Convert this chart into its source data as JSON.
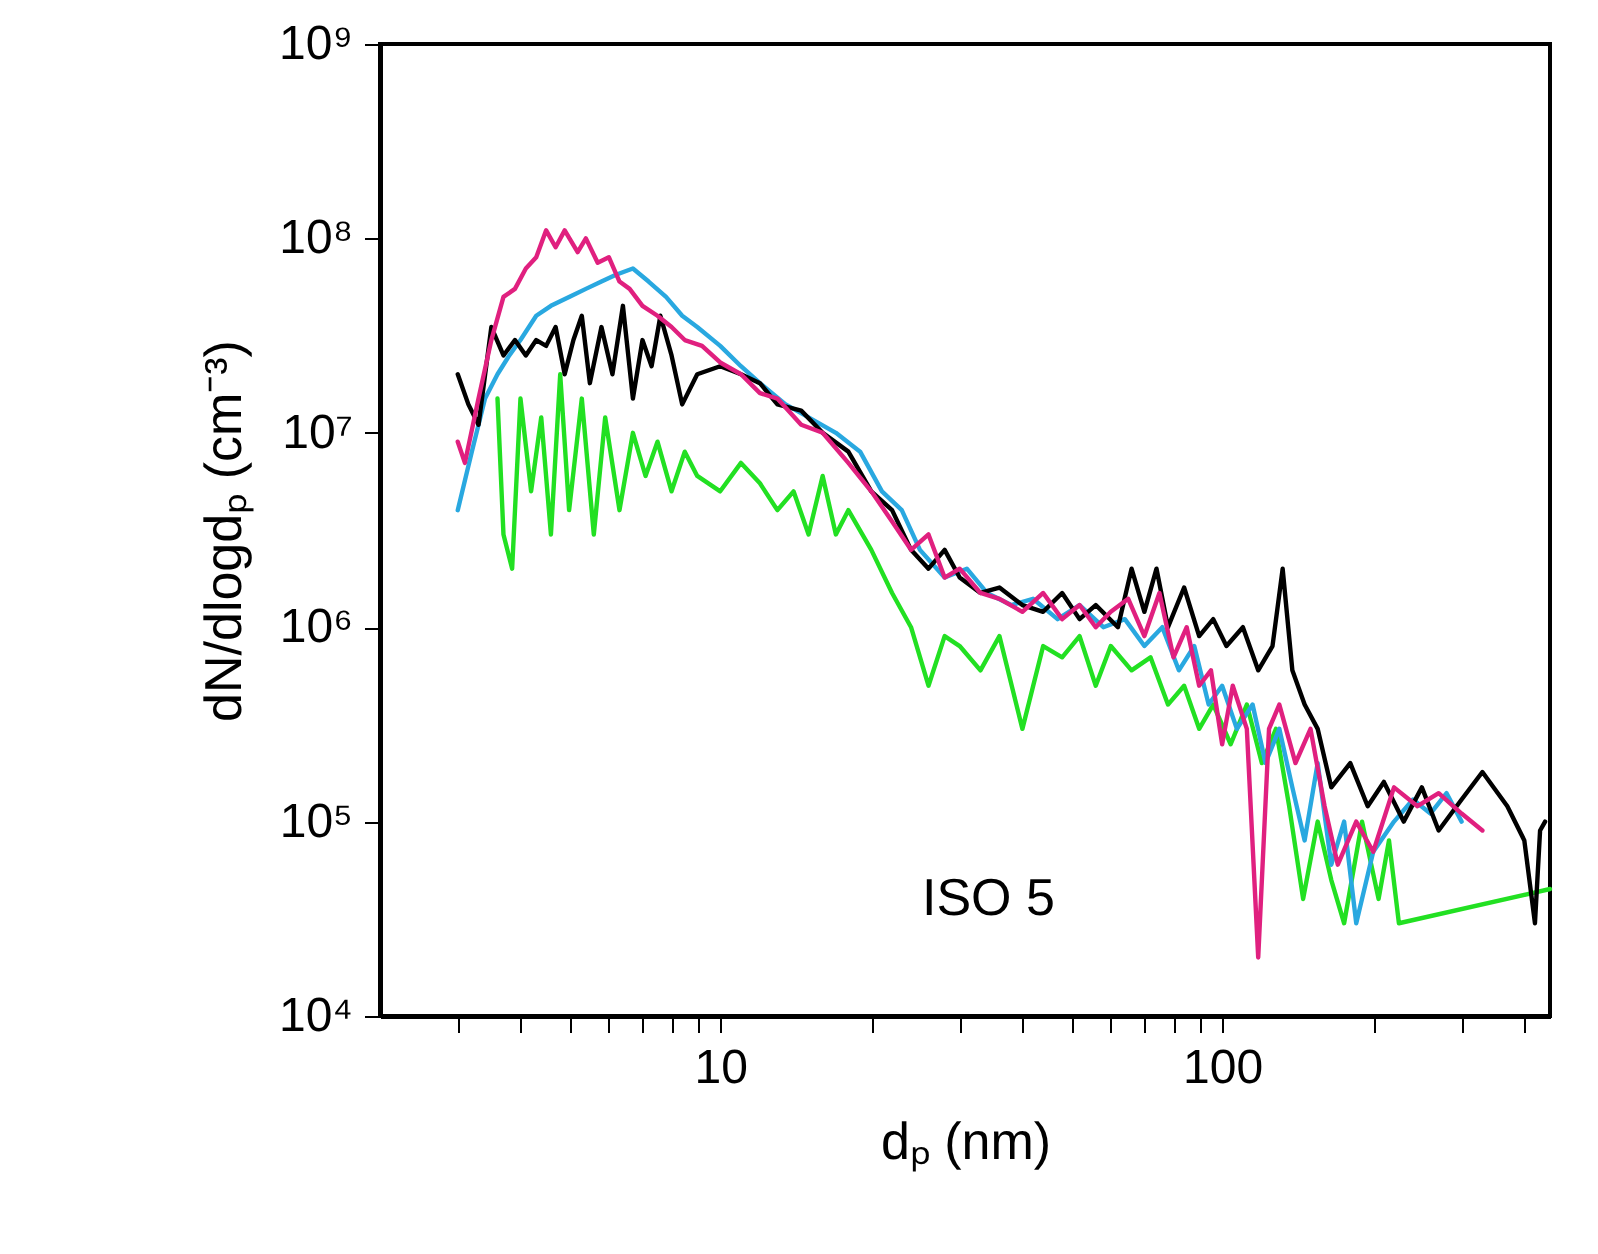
{
  "chart_data": {
    "type": "line",
    "log": "xy",
    "xlabel": "dₚ (nm)",
    "ylabel": "dN/dlogdₚ (cm⁻³)",
    "xlim": [
      2.1,
      450
    ],
    "ylim": [
      10000,
      1000000000
    ],
    "xticks": [
      {
        "value": 3,
        "label": null
      },
      {
        "value": 4,
        "label": null
      },
      {
        "value": 5,
        "label": null
      },
      {
        "value": 6,
        "label": null
      },
      {
        "value": 7,
        "label": null
      },
      {
        "value": 8,
        "label": null
      },
      {
        "value": 9,
        "label": null
      },
      10,
      {
        "value": 20,
        "label": null
      },
      {
        "value": 30,
        "label": null
      },
      {
        "value": 40,
        "label": null
      },
      {
        "value": 50,
        "label": null
      },
      {
        "value": 60,
        "label": null
      },
      {
        "value": 70,
        "label": null
      },
      {
        "value": 80,
        "label": null
      },
      {
        "value": 90,
        "label": null
      },
      100,
      {
        "value": 200,
        "label": null
      },
      {
        "value": 300,
        "label": null
      },
      {
        "value": 400,
        "label": null
      }
    ],
    "yticks": [
      {
        "value": 10000,
        "label": "10⁴"
      },
      {
        "value": 100000,
        "label": "10⁵"
      },
      {
        "value": 1000000,
        "label": "10⁶"
      },
      {
        "value": 10000000,
        "label": "10⁷"
      },
      {
        "value": 100000000,
        "label": "10⁸"
      },
      {
        "value": 1000000000,
        "label": "10⁹"
      }
    ],
    "annotations": [
      "ISO 5"
    ],
    "series": [
      {
        "color": "#22e022",
        "x": [
          3.6,
          3.7,
          3.85,
          4.0,
          4.2,
          4.4,
          4.6,
          4.8,
          5.0,
          5.3,
          5.6,
          5.9,
          6.3,
          6.7,
          7.1,
          7.5,
          8.0,
          8.5,
          9,
          10,
          11,
          12,
          13,
          14,
          15,
          16,
          17,
          18,
          20,
          22,
          24,
          26,
          28,
          30,
          33,
          36,
          40,
          44,
          48,
          52,
          56,
          60,
          66,
          72,
          78,
          84,
          90,
          96,
          104,
          112,
          120,
          128,
          136,
          145,
          155,
          165,
          175,
          190,
          205,
          215,
          225,
          450
        ],
        "values": [
          15000000.0,
          3000000.0,
          2000000.0,
          15000000.0,
          5000000.0,
          12000000.0,
          3000000.0,
          20000000.0,
          4000000.0,
          15000000.0,
          3000000.0,
          12000000.0,
          4000000.0,
          10000000.0,
          6000000.0,
          9000000.0,
          5000000.0,
          8000000.0,
          6000000.0,
          5000000.0,
          7000000.0,
          5500000.0,
          4000000.0,
          5000000.0,
          3000000.0,
          6000000.0,
          3000000.0,
          4000000.0,
          2500000.0,
          1500000.0,
          1000000.0,
          500000.0,
          900000.0,
          800000.0,
          600000.0,
          900000.0,
          300000.0,
          800000.0,
          700000.0,
          900000.0,
          500000.0,
          800000.0,
          600000.0,
          700000.0,
          400000.0,
          500000.0,
          300000.0,
          400000.0,
          250000.0,
          400000.0,
          200000.0,
          300000.0,
          120000.0,
          40000.0,
          100000.0,
          50000.0,
          30000.0,
          100000.0,
          40000.0,
          80000.0,
          30000.0,
          45000.0
        ]
      },
      {
        "color": "#29a8e0",
        "x": [
          3.0,
          3.2,
          3.4,
          3.6,
          3.8,
          4.0,
          4.3,
          4.6,
          5.0,
          5.4,
          5.8,
          6.2,
          6.7,
          7.2,
          7.8,
          8.4,
          9,
          10,
          11,
          12,
          13.5,
          15,
          17,
          19,
          21,
          23,
          25,
          28,
          31,
          34,
          38,
          42,
          47,
          52,
          58,
          64,
          70,
          76,
          82,
          88,
          94,
          100,
          107,
          115,
          122,
          130,
          138,
          146,
          155,
          165,
          175,
          185,
          200,
          220,
          240,
          260,
          280,
          300
        ],
        "values": [
          4000000.0,
          8000000.0,
          15000000.0,
          20000000.0,
          25000000.0,
          30000000.0,
          40000000.0,
          45000000.0,
          50000000.0,
          55000000.0,
          60000000.0,
          65000000.0,
          70000000.0,
          60000000.0,
          50000000.0,
          40000000.0,
          35000000.0,
          28000000.0,
          22000000.0,
          18000000.0,
          14000000.0,
          12000000.0,
          10000000.0,
          8000000.0,
          5000000.0,
          4000000.0,
          2500000.0,
          1800000.0,
          2000000.0,
          1500000.0,
          1300000.0,
          1400000.0,
          1100000.0,
          1300000.0,
          1000000.0,
          1100000.0,
          800000.0,
          1000000.0,
          600000.0,
          800000.0,
          400000.0,
          500000.0,
          300000.0,
          400000.0,
          200000.0,
          300000.0,
          150000.0,
          80000.0,
          200000.0,
          60000.0,
          100000.0,
          30000.0,
          70000.0,
          100000.0,
          130000.0,
          110000.0,
          140000.0,
          100000.0
        ]
      },
      {
        "color": "#000000",
        "x": [
          3.0,
          3.15,
          3.3,
          3.5,
          3.7,
          3.9,
          4.1,
          4.3,
          4.5,
          4.7,
          4.9,
          5.1,
          5.3,
          5.5,
          5.8,
          6.1,
          6.4,
          6.7,
          7.0,
          7.3,
          7.6,
          8.0,
          8.4,
          9,
          10,
          11,
          12,
          13,
          14.5,
          16,
          18,
          20,
          22,
          24,
          26,
          28,
          30,
          33,
          36,
          40,
          44,
          48,
          52,
          56,
          62,
          66,
          70,
          74,
          78,
          84,
          90,
          96,
          102,
          110,
          118,
          126,
          132,
          138,
          146,
          155,
          165,
          180,
          195,
          210,
          230,
          250,
          270,
          300,
          330,
          370,
          400,
          420,
          430,
          440
        ],
        "values": [
          20000000.0,
          14000000.0,
          11000000.0,
          35000000.0,
          25000000.0,
          30000000.0,
          25000000.0,
          30000000.0,
          28000000.0,
          35000000.0,
          20000000.0,
          30000000.0,
          40000000.0,
          18000000.0,
          35000000.0,
          20000000.0,
          45000000.0,
          15000000.0,
          30000000.0,
          22000000.0,
          40000000.0,
          25000000.0,
          14000000.0,
          20000000.0,
          22000000.0,
          20000000.0,
          18000000.0,
          14000000.0,
          13000000.0,
          10000000.0,
          8000000.0,
          5000000.0,
          4000000.0,
          2500000.0,
          2000000.0,
          2500000.0,
          1800000.0,
          1500000.0,
          1600000.0,
          1300000.0,
          1200000.0,
          1500000.0,
          1100000.0,
          1300000.0,
          1000000.0,
          2000000.0,
          1200000.0,
          2000000.0,
          1000000.0,
          1600000.0,
          900000.0,
          1100000.0,
          800000.0,
          1000000.0,
          600000.0,
          800000.0,
          2000000.0,
          600000.0,
          400000.0,
          300000.0,
          150000.0,
          200000.0,
          120000.0,
          160000.0,
          100000.0,
          150000.0,
          90000.0,
          130000.0,
          180000.0,
          120000.0,
          80000.0,
          30000.0,
          90000.0,
          100000.0
        ]
      },
      {
        "color": "#e0207f",
        "x": [
          3.0,
          3.1,
          3.3,
          3.5,
          3.7,
          3.9,
          4.1,
          4.3,
          4.5,
          4.7,
          4.9,
          5.2,
          5.4,
          5.7,
          6.0,
          6.3,
          6.6,
          7.0,
          7.5,
          8.0,
          8.5,
          9.2,
          10,
          11,
          12,
          13,
          14.5,
          16,
          18,
          20,
          22,
          24,
          26,
          28,
          30,
          33,
          36,
          40,
          44,
          48,
          52,
          56,
          60,
          65,
          70,
          75,
          80,
          85,
          90,
          95,
          100,
          105,
          112,
          118,
          124,
          130,
          140,
          150,
          160,
          170,
          185,
          200,
          220,
          245,
          270,
          300,
          330
        ],
        "values": [
          9000000.0,
          7000000.0,
          15000000.0,
          30000000.0,
          50000000.0,
          55000000.0,
          70000000.0,
          80000000.0,
          110000000.0,
          90000000.0,
          110000000.0,
          85000000.0,
          100000000.0,
          75000000.0,
          80000000.0,
          60000000.0,
          55000000.0,
          45000000.0,
          40000000.0,
          35000000.0,
          30000000.0,
          28000000.0,
          23000000.0,
          20000000.0,
          16000000.0,
          15000000.0,
          11000000.0,
          10000000.0,
          7000000.0,
          5000000.0,
          3500000.0,
          2500000.0,
          3000000.0,
          1800000.0,
          2000000.0,
          1500000.0,
          1400000.0,
          1200000.0,
          1500000.0,
          1100000.0,
          1300000.0,
          1000000.0,
          1200000.0,
          1400000.0,
          900000.0,
          1500000.0,
          700000.0,
          1000000.0,
          500000.0,
          600000.0,
          250000.0,
          500000.0,
          300000.0,
          20000.0,
          300000.0,
          400000.0,
          200000.0,
          300000.0,
          120000.0,
          60000.0,
          100000.0,
          70000.0,
          150000.0,
          120000.0,
          140000.0,
          110000.0,
          90000.0
        ]
      }
    ]
  }
}
